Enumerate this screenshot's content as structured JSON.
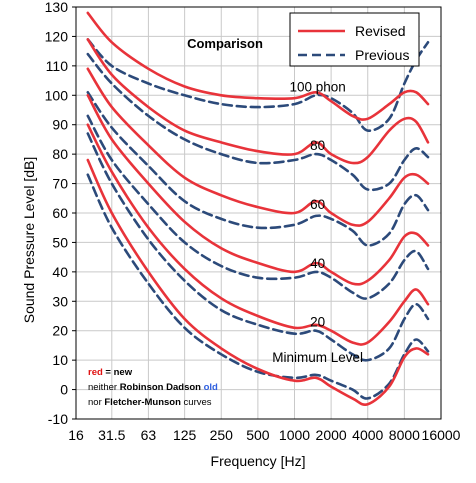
{
  "chart_data": {
    "type": "line",
    "title": "Comparison",
    "xlabel": "Frequency [Hz]",
    "ylabel": "Sound Pressure Level [dB]",
    "x_scale": "log",
    "xlim": [
      16,
      16000
    ],
    "ylim": [
      -10,
      130
    ],
    "grid": true,
    "legend_position": "top-right",
    "x_ticks": [
      {
        "value": 16,
        "label": "16"
      },
      {
        "value": 31.5,
        "label": "31.5"
      },
      {
        "value": 63,
        "label": "63"
      },
      {
        "value": 125,
        "label": "125"
      },
      {
        "value": 250,
        "label": "250"
      },
      {
        "value": 500,
        "label": "500"
      },
      {
        "value": 1000,
        "label": "1000"
      },
      {
        "value": 2000,
        "label": "2000"
      },
      {
        "value": 4000,
        "label": "4000"
      },
      {
        "value": 8000,
        "label": "8000"
      },
      {
        "value": 16000,
        "label": "16000"
      }
    ],
    "y_ticks": [
      -10,
      0,
      10,
      20,
      30,
      40,
      50,
      60,
      70,
      80,
      90,
      100,
      110,
      120,
      130
    ],
    "legend": [
      {
        "label": "Revised",
        "color": "#e8333a",
        "dash": "solid"
      },
      {
        "label": "Previous",
        "color": "#2c4a7a",
        "dash": "dashed"
      }
    ],
    "curve_labels": [
      {
        "text": "100 phon",
        "x": 1550,
        "y": 100
      },
      {
        "text": "80",
        "x": 1550,
        "y": 80
      },
      {
        "text": "60",
        "x": 1550,
        "y": 60
      },
      {
        "text": "40",
        "x": 1550,
        "y": 40
      },
      {
        "text": "20",
        "x": 1550,
        "y": 20
      },
      {
        "text": "Minimum Level",
        "x": 1550,
        "y": 8
      }
    ],
    "note": {
      "line1": {
        "red_word": "red",
        "rest": " = new"
      },
      "line2": {
        "pre": "neither ",
        "bold": "Robinson Dadson",
        "space": " ",
        "blue": "old"
      },
      "line3": {
        "pre": "nor ",
        "bold": "Fletcher-Munson",
        "post": " curves"
      }
    },
    "colors": {
      "revised": "#e8333a",
      "previous": "#2c4a7a",
      "note_blue": "#3060e0",
      "note_red": "#e01010"
    },
    "series": [
      {
        "name": "Revised",
        "phon": "100 phon",
        "color": "#e8333a",
        "dash": "solid",
        "points": [
          [
            20,
            128
          ],
          [
            31.5,
            118
          ],
          [
            63,
            109
          ],
          [
            125,
            103
          ],
          [
            250,
            100
          ],
          [
            500,
            99
          ],
          [
            1000,
            99
          ],
          [
            1500,
            101
          ],
          [
            2000,
            98
          ],
          [
            3000,
            93
          ],
          [
            4000,
            92
          ],
          [
            6000,
            97
          ],
          [
            8000,
            101
          ],
          [
            10000,
            101
          ],
          [
            12500,
            97
          ]
        ]
      },
      {
        "name": "Previous",
        "phon": "100 phon",
        "color": "#2c4a7a",
        "dash": "dashed",
        "points": [
          [
            20,
            119
          ],
          [
            31.5,
            110
          ],
          [
            63,
            104
          ],
          [
            125,
            100
          ],
          [
            250,
            97
          ],
          [
            500,
            96
          ],
          [
            1000,
            97
          ],
          [
            1500,
            100
          ],
          [
            2000,
            99
          ],
          [
            3000,
            94
          ],
          [
            4000,
            88
          ],
          [
            6000,
            92
          ],
          [
            8000,
            104
          ],
          [
            10000,
            112
          ],
          [
            12500,
            118
          ]
        ]
      },
      {
        "name": "Revised",
        "phon": "80",
        "color": "#e8333a",
        "dash": "solid",
        "points": [
          [
            20,
            119
          ],
          [
            31.5,
            107
          ],
          [
            63,
            96
          ],
          [
            125,
            88
          ],
          [
            250,
            84
          ],
          [
            500,
            81
          ],
          [
            1000,
            80
          ],
          [
            1500,
            84
          ],
          [
            2000,
            80
          ],
          [
            3000,
            77
          ],
          [
            4000,
            79
          ],
          [
            6000,
            88
          ],
          [
            8000,
            92
          ],
          [
            10000,
            91
          ],
          [
            12500,
            84
          ]
        ]
      },
      {
        "name": "Previous",
        "phon": "80",
        "color": "#2c4a7a",
        "dash": "dashed",
        "points": [
          [
            20,
            114
          ],
          [
            31.5,
            104
          ],
          [
            63,
            93
          ],
          [
            125,
            85
          ],
          [
            250,
            80
          ],
          [
            500,
            77
          ],
          [
            1000,
            78
          ],
          [
            1500,
            80
          ],
          [
            2000,
            78
          ],
          [
            3000,
            73
          ],
          [
            4000,
            68
          ],
          [
            6000,
            70
          ],
          [
            8000,
            78
          ],
          [
            10000,
            82
          ],
          [
            12500,
            79
          ]
        ]
      },
      {
        "name": "Revised",
        "phon": "60",
        "color": "#e8333a",
        "dash": "solid",
        "points": [
          [
            20,
            109
          ],
          [
            31.5,
            96
          ],
          [
            63,
            83
          ],
          [
            125,
            72
          ],
          [
            250,
            66
          ],
          [
            500,
            62
          ],
          [
            1000,
            60
          ],
          [
            1500,
            64
          ],
          [
            2000,
            60
          ],
          [
            3000,
            56
          ],
          [
            4000,
            57
          ],
          [
            6000,
            65
          ],
          [
            8000,
            72
          ],
          [
            10000,
            73
          ],
          [
            12500,
            70
          ]
        ]
      },
      {
        "name": "Previous",
        "phon": "60",
        "color": "#2c4a7a",
        "dash": "dashed",
        "points": [
          [
            20,
            101
          ],
          [
            31.5,
            89
          ],
          [
            63,
            76
          ],
          [
            125,
            64
          ],
          [
            250,
            58
          ],
          [
            500,
            55
          ],
          [
            1000,
            56
          ],
          [
            1500,
            59
          ],
          [
            2000,
            58
          ],
          [
            3000,
            54
          ],
          [
            4000,
            49
          ],
          [
            6000,
            53
          ],
          [
            8000,
            63
          ],
          [
            10000,
            66
          ],
          [
            12500,
            61
          ]
        ]
      },
      {
        "name": "Revised",
        "phon": "40",
        "color": "#e8333a",
        "dash": "solid",
        "points": [
          [
            20,
            100
          ],
          [
            31.5,
            85
          ],
          [
            63,
            70
          ],
          [
            125,
            57
          ],
          [
            250,
            48
          ],
          [
            500,
            43
          ],
          [
            1000,
            40
          ],
          [
            1500,
            43
          ],
          [
            2000,
            40
          ],
          [
            3000,
            36
          ],
          [
            4000,
            37
          ],
          [
            6000,
            44
          ],
          [
            8000,
            52
          ],
          [
            10000,
            53
          ],
          [
            12500,
            49
          ]
        ]
      },
      {
        "name": "Previous",
        "phon": "40",
        "color": "#2c4a7a",
        "dash": "dashed",
        "points": [
          [
            20,
            93
          ],
          [
            31.5,
            78
          ],
          [
            63,
            63
          ],
          [
            125,
            50
          ],
          [
            250,
            42
          ],
          [
            500,
            38
          ],
          [
            1000,
            38
          ],
          [
            1500,
            40
          ],
          [
            2000,
            38
          ],
          [
            3000,
            33
          ],
          [
            4000,
            31
          ],
          [
            6000,
            36
          ],
          [
            8000,
            44
          ],
          [
            10000,
            47
          ],
          [
            12500,
            41
          ]
        ]
      },
      {
        "name": "Revised",
        "phon": "20",
        "color": "#e8333a",
        "dash": "solid",
        "points": [
          [
            20,
            90
          ],
          [
            31.5,
            74
          ],
          [
            63,
            55
          ],
          [
            125,
            41
          ],
          [
            250,
            31
          ],
          [
            500,
            25
          ],
          [
            1000,
            21
          ],
          [
            1500,
            22
          ],
          [
            2000,
            20
          ],
          [
            3000,
            16
          ],
          [
            4000,
            16
          ],
          [
            6000,
            23
          ],
          [
            8000,
            30
          ],
          [
            10000,
            34
          ],
          [
            12500,
            29
          ]
        ]
      },
      {
        "name": "Previous",
        "phon": "20",
        "color": "#2c4a7a",
        "dash": "dashed",
        "points": [
          [
            20,
            87
          ],
          [
            31.5,
            70
          ],
          [
            63,
            51
          ],
          [
            125,
            37
          ],
          [
            250,
            27
          ],
          [
            500,
            22
          ],
          [
            1000,
            19
          ],
          [
            1500,
            20
          ],
          [
            2000,
            17
          ],
          [
            3000,
            12
          ],
          [
            4000,
            10
          ],
          [
            6000,
            14
          ],
          [
            8000,
            24
          ],
          [
            10000,
            29
          ],
          [
            12500,
            24
          ]
        ]
      },
      {
        "name": "Revised",
        "phon": "Minimum Level",
        "color": "#e8333a",
        "dash": "solid",
        "points": [
          [
            20,
            78
          ],
          [
            31.5,
            60
          ],
          [
            63,
            40
          ],
          [
            125,
            24
          ],
          [
            250,
            14
          ],
          [
            500,
            7
          ],
          [
            1000,
            3
          ],
          [
            1500,
            4
          ],
          [
            2000,
            1
          ],
          [
            3000,
            -3
          ],
          [
            4000,
            -5
          ],
          [
            6000,
            1
          ],
          [
            8000,
            11
          ],
          [
            10000,
            14
          ],
          [
            12500,
            12
          ]
        ]
      },
      {
        "name": "Previous",
        "phon": "Minimum Level",
        "color": "#2c4a7a",
        "dash": "dashed",
        "points": [
          [
            20,
            73
          ],
          [
            31.5,
            55
          ],
          [
            63,
            36
          ],
          [
            125,
            21
          ],
          [
            250,
            12
          ],
          [
            500,
            6
          ],
          [
            1000,
            4
          ],
          [
            1500,
            5
          ],
          [
            2000,
            3
          ],
          [
            3000,
            0
          ],
          [
            4000,
            -3
          ],
          [
            6000,
            2
          ],
          [
            8000,
            12
          ],
          [
            10000,
            17
          ],
          [
            12500,
            13
          ]
        ]
      }
    ]
  }
}
